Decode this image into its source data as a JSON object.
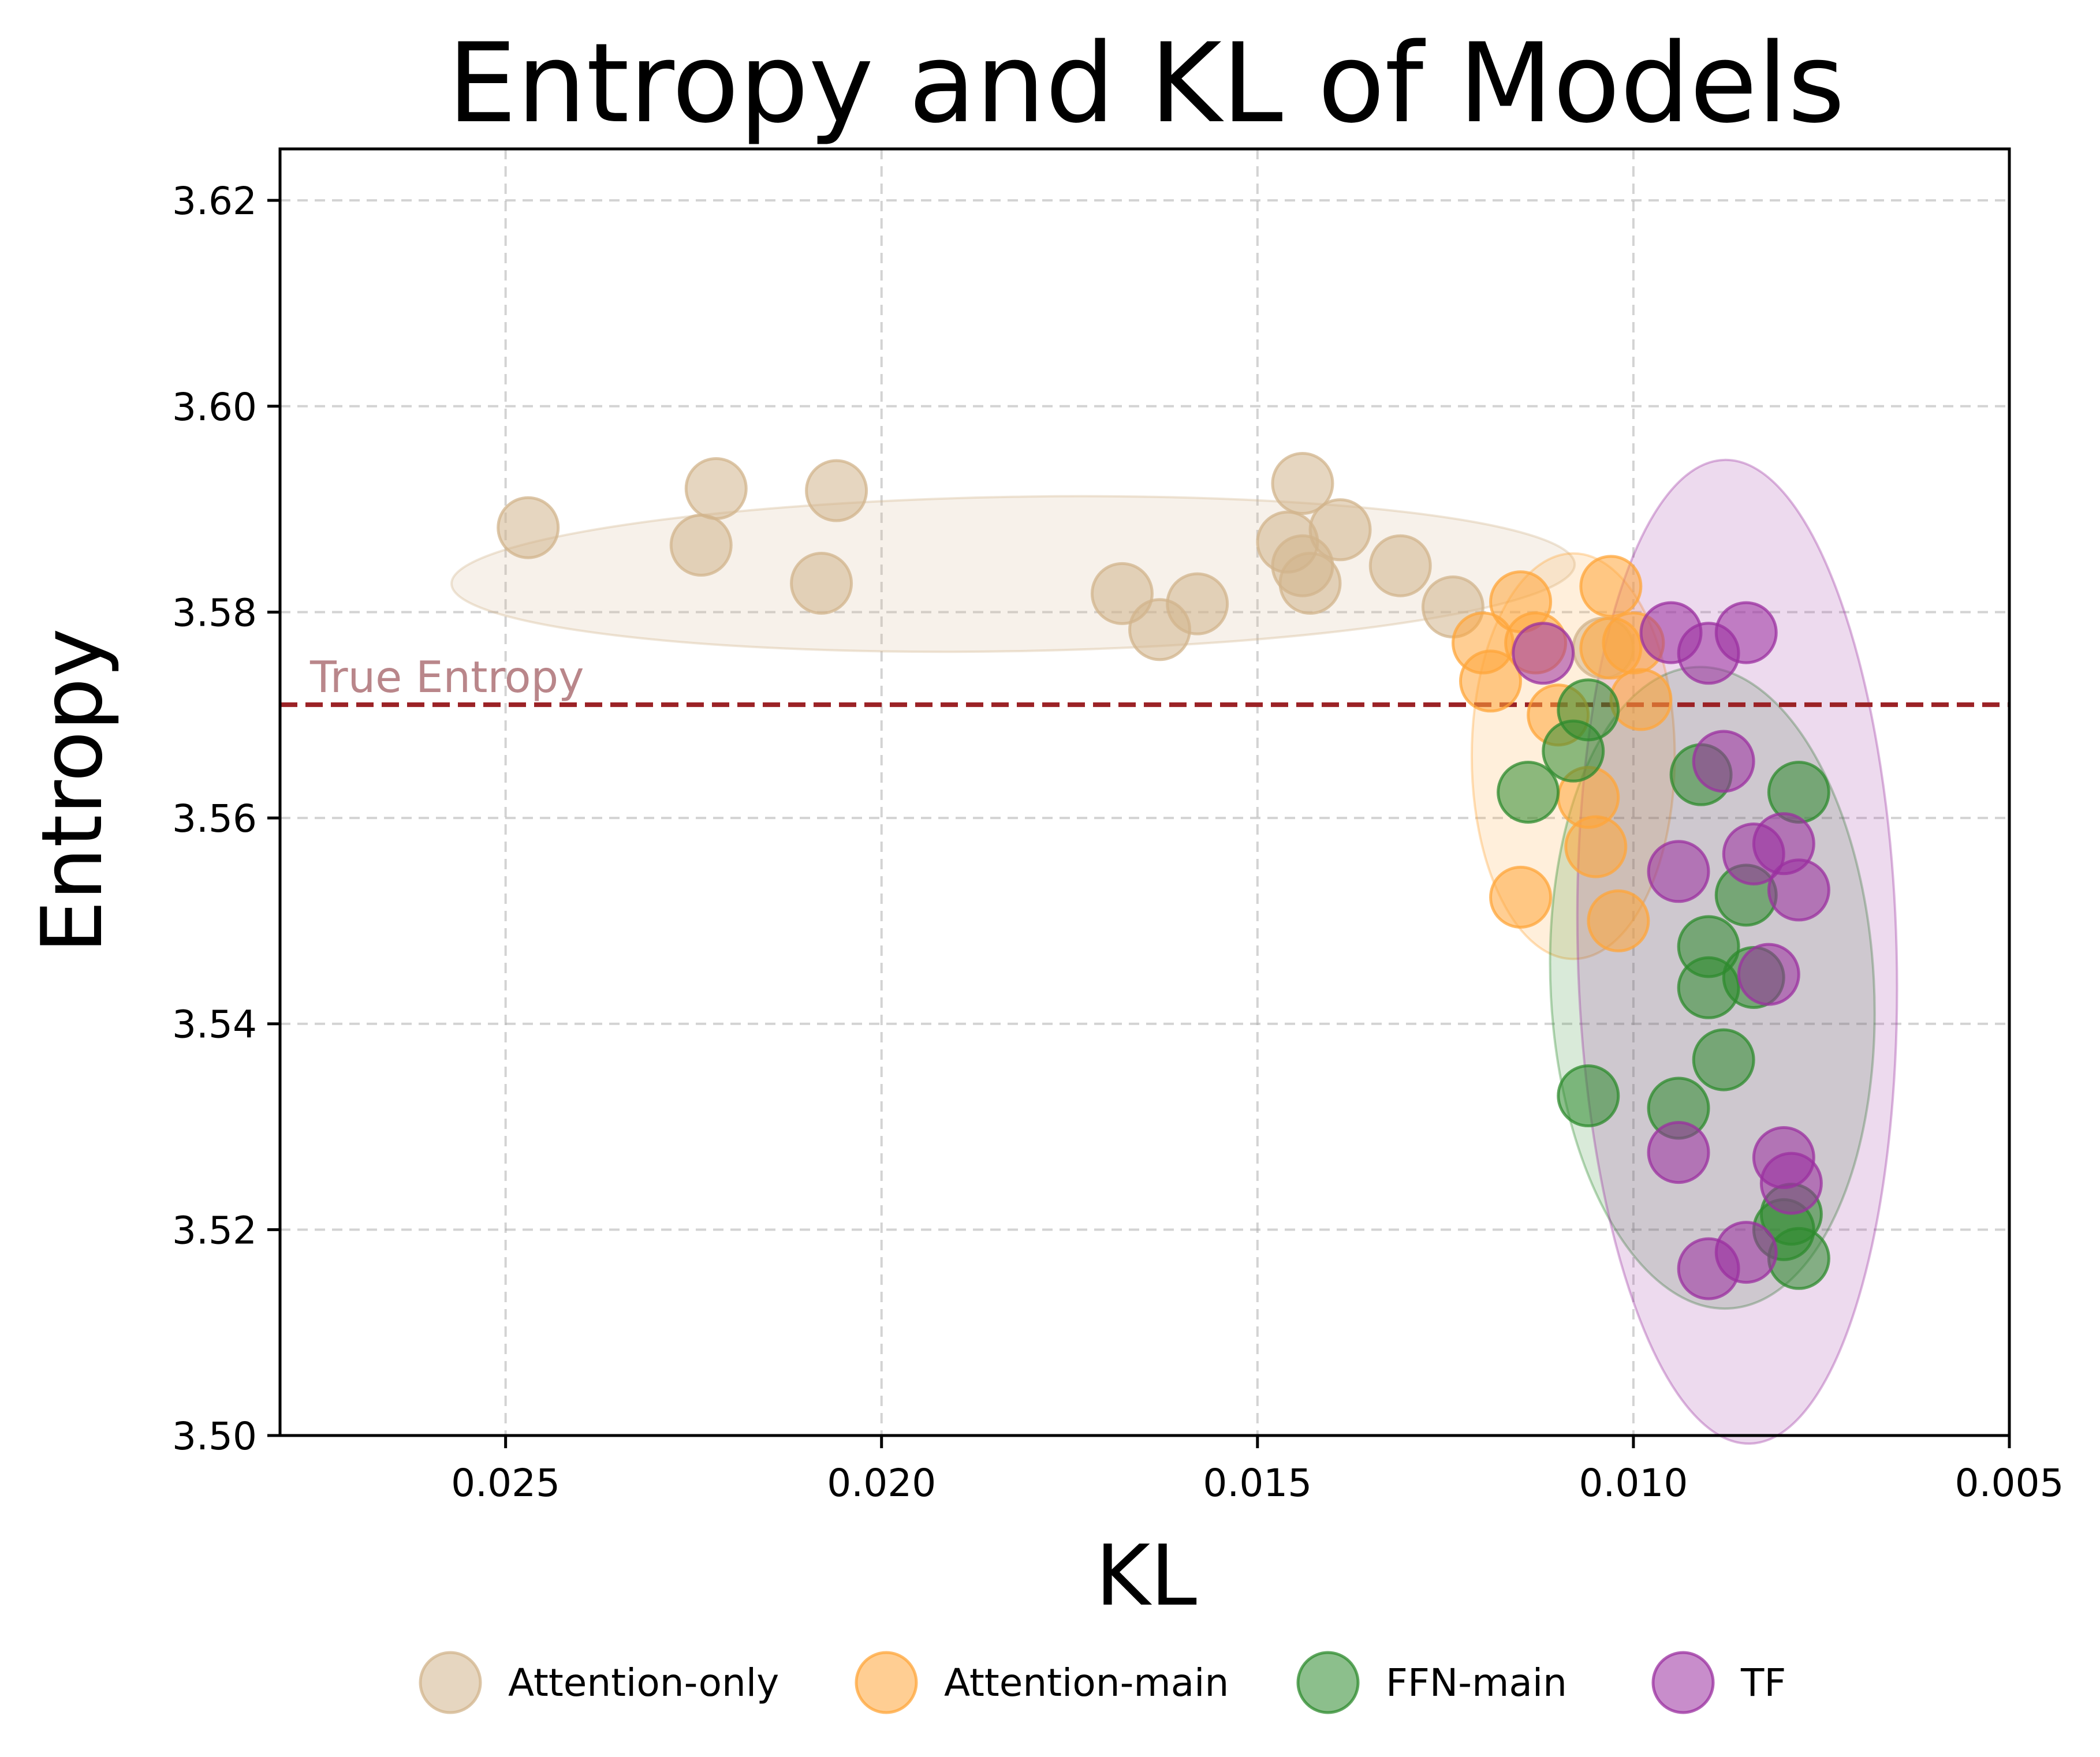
{
  "chart_data": {
    "type": "scatter",
    "title": "Entropy and KL of Models",
    "xlabel": "KL",
    "ylabel": "Entropy",
    "x_inverted": true,
    "xlim": [
      0.028,
      0.005
    ],
    "ylim": [
      3.5,
      3.625
    ],
    "x_ticks": [
      0.025,
      0.02,
      0.015,
      0.01,
      0.005
    ],
    "x_tick_labels": [
      "0.025",
      "0.020",
      "0.015",
      "0.010",
      "0.005"
    ],
    "y_ticks": [
      3.5,
      3.52,
      3.54,
      3.56,
      3.58,
      3.6,
      3.62
    ],
    "y_tick_labels": [
      "3.50",
      "3.52",
      "3.54",
      "3.56",
      "3.58",
      "3.60",
      "3.62"
    ],
    "grid": true,
    "legend_position": "bottom-center",
    "reference_line": {
      "label": "True Entropy",
      "y": 3.571,
      "color": "#9b2226",
      "label_color": "#b9868a"
    },
    "series": [
      {
        "name": "Attention-only",
        "color": "#d2b48c",
        "points": [
          {
            "x": 0.0247,
            "y": 3.5882
          },
          {
            "x": 0.0222,
            "y": 3.592
          },
          {
            "x": 0.0224,
            "y": 3.5865
          },
          {
            "x": 0.0206,
            "y": 3.5918
          },
          {
            "x": 0.0208,
            "y": 3.5828
          },
          {
            "x": 0.0168,
            "y": 3.5818
          },
          {
            "x": 0.0163,
            "y": 3.5783
          },
          {
            "x": 0.0158,
            "y": 3.5808
          },
          {
            "x": 0.0144,
            "y": 3.5925
          },
          {
            "x": 0.0139,
            "y": 3.588
          },
          {
            "x": 0.0146,
            "y": 3.5868
          },
          {
            "x": 0.0144,
            "y": 3.5845
          },
          {
            "x": 0.0143,
            "y": 3.5828
          },
          {
            "x": 0.0131,
            "y": 3.5845
          },
          {
            "x": 0.0124,
            "y": 3.5805
          },
          {
            "x": 0.0104,
            "y": 3.5765
          }
        ],
        "ellipse": {
          "cx": 0.01825,
          "cy": 3.5837,
          "rx": 0.00747,
          "ry": 0.0075,
          "angle_deg": -1.0
        }
      },
      {
        "name": "Attention-main",
        "color": "#ffa53a",
        "points": [
          {
            "x": 0.012,
            "y": 3.577
          },
          {
            "x": 0.0115,
            "y": 3.581
          },
          {
            "x": 0.0113,
            "y": 3.577
          },
          {
            "x": 0.0119,
            "y": 3.5733
          },
          {
            "x": 0.011,
            "y": 3.57
          },
          {
            "x": 0.0103,
            "y": 3.5825
          },
          {
            "x": 0.0103,
            "y": 3.5765
          },
          {
            "x": 0.01,
            "y": 3.577
          },
          {
            "x": 0.0099,
            "y": 3.5715
          },
          {
            "x": 0.0106,
            "y": 3.562
          },
          {
            "x": 0.0105,
            "y": 3.5572
          },
          {
            "x": 0.0115,
            "y": 3.5523
          },
          {
            "x": 0.0102,
            "y": 3.55
          }
        ],
        "ellipse": {
          "cx": 0.0108,
          "cy": 3.566,
          "rx": 0.00135,
          "ry": 0.0197,
          "angle_deg": 0
        }
      },
      {
        "name": "FFN-main",
        "color": "#2e8b2e",
        "points": [
          {
            "x": 0.0106,
            "y": 3.5705
          },
          {
            "x": 0.0108,
            "y": 3.5665
          },
          {
            "x": 0.0114,
            "y": 3.5625
          },
          {
            "x": 0.0091,
            "y": 3.5642
          },
          {
            "x": 0.0078,
            "y": 3.5625
          },
          {
            "x": 0.0085,
            "y": 3.5525
          },
          {
            "x": 0.009,
            "y": 3.5475
          },
          {
            "x": 0.009,
            "y": 3.5435
          },
          {
            "x": 0.0084,
            "y": 3.5445
          },
          {
            "x": 0.0088,
            "y": 3.5365
          },
          {
            "x": 0.0094,
            "y": 3.5318
          },
          {
            "x": 0.0106,
            "y": 3.533
          },
          {
            "x": 0.008,
            "y": 3.52
          },
          {
            "x": 0.0079,
            "y": 3.5215
          },
          {
            "x": 0.0078,
            "y": 3.5172
          }
        ],
        "ellipse": {
          "cx": 0.00895,
          "cy": 3.5435,
          "rx": 0.00215,
          "ry": 0.0312,
          "angle_deg": -3.0
        }
      },
      {
        "name": "TF",
        "color": "#9b30a0",
        "points": [
          {
            "x": 0.0112,
            "y": 3.576
          },
          {
            "x": 0.0095,
            "y": 3.578
          },
          {
            "x": 0.009,
            "y": 3.576
          },
          {
            "x": 0.0085,
            "y": 3.578
          },
          {
            "x": 0.0088,
            "y": 3.5655
          },
          {
            "x": 0.0094,
            "y": 3.5548
          },
          {
            "x": 0.0084,
            "y": 3.5565
          },
          {
            "x": 0.008,
            "y": 3.5575
          },
          {
            "x": 0.0078,
            "y": 3.553
          },
          {
            "x": 0.0082,
            "y": 3.5448
          },
          {
            "x": 0.0094,
            "y": 3.5275
          },
          {
            "x": 0.008,
            "y": 3.527
          },
          {
            "x": 0.0079,
            "y": 3.5245
          },
          {
            "x": 0.0085,
            "y": 3.5178
          },
          {
            "x": 0.009,
            "y": 3.5162
          }
        ],
        "ellipse": {
          "cx": 0.00862,
          "cy": 3.547,
          "rx": 0.00212,
          "ry": 0.0478,
          "angle_deg": -1.5
        }
      }
    ]
  }
}
